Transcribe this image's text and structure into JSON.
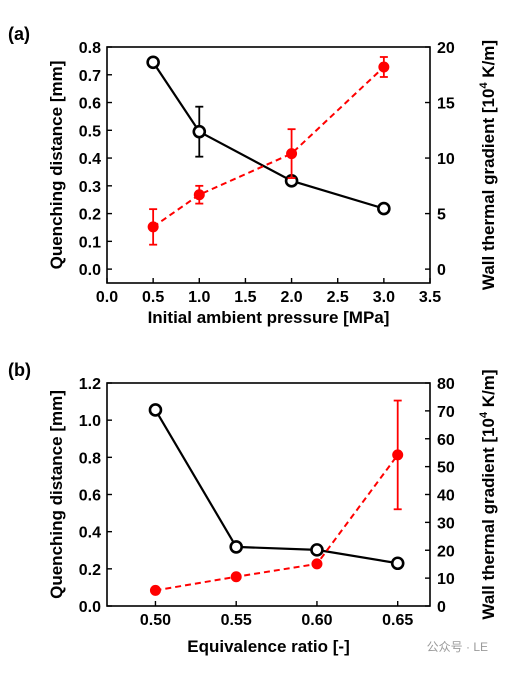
{
  "chart_data": [
    {
      "type": "line",
      "panel_label": "(a)",
      "xlabel": "Initial ambient pressure [MPa]",
      "ylabel_left": "Quenching distance [mm]",
      "ylabel_right": "Wall thermal gradient [10^4 K/m]",
      "xlim": [
        0.0,
        3.5
      ],
      "ylim_left": [
        -0.05,
        0.8
      ],
      "ylim_right": [
        -1.25,
        20
      ],
      "x_ticks": [
        0.0,
        0.5,
        1.0,
        1.5,
        2.0,
        2.5,
        3.0,
        3.5
      ],
      "x_tick_labels": [
        "0.0",
        "0.5",
        "1.0",
        "1.5",
        "2.0",
        "2.5",
        "3.0",
        "3.5"
      ],
      "y_left_ticks": [
        0.0,
        0.1,
        0.2,
        0.3,
        0.4,
        0.5,
        0.6,
        0.7,
        0.8
      ],
      "y_left_tick_labels": [
        "0.0",
        "0.1",
        "0.2",
        "0.3",
        "0.4",
        "0.5",
        "0.6",
        "0.7",
        "0.8"
      ],
      "y_right_ticks": [
        0,
        5,
        10,
        15,
        20
      ],
      "y_right_tick_labels": [
        "0",
        "5",
        "10",
        "15",
        "20"
      ],
      "series": [
        {
          "axis": "left",
          "color": "#000000",
          "style": "solid",
          "marker": "open-circle",
          "x": [
            0.5,
            1.0,
            2.0,
            3.0
          ],
          "y": [
            0.745,
            0.495,
            0.318,
            0.218
          ],
          "err": [
            0.0,
            0.09,
            0.0,
            0.012
          ]
        },
        {
          "axis": "right",
          "color": "#ff0000",
          "style": "dashed",
          "marker": "filled-circle",
          "x": [
            0.5,
            1.0,
            2.0,
            3.0
          ],
          "y": [
            3.8,
            6.7,
            10.4,
            18.2
          ],
          "err": [
            1.6,
            0.8,
            2.2,
            0.9
          ]
        }
      ]
    },
    {
      "type": "line",
      "panel_label": "(b)",
      "xlabel": "Equivalence ratio [-]",
      "ylabel_left": "Quenching distance [mm]",
      "ylabel_right": "Wall thermal gradient [10^4 K/m]",
      "xlim": [
        0.47,
        0.67
      ],
      "ylim_left": [
        0.0,
        1.2
      ],
      "ylim_right": [
        0,
        80
      ],
      "x_ticks": [
        0.5,
        0.55,
        0.6,
        0.65
      ],
      "x_tick_labels": [
        "0.50",
        "0.55",
        "0.60",
        "0.65"
      ],
      "y_left_ticks": [
        0.0,
        0.2,
        0.4,
        0.6,
        0.8,
        1.0,
        1.2
      ],
      "y_left_tick_labels": [
        "0.0",
        "0.2",
        "0.4",
        "0.6",
        "0.8",
        "1.0",
        "1.2"
      ],
      "y_right_ticks": [
        0,
        10,
        20,
        30,
        40,
        50,
        60,
        70,
        80
      ],
      "y_right_tick_labels": [
        "0",
        "10",
        "20",
        "30",
        "40",
        "50",
        "60",
        "70",
        "80"
      ],
      "series": [
        {
          "axis": "left",
          "color": "#000000",
          "style": "solid",
          "marker": "open-circle",
          "x": [
            0.5,
            0.55,
            0.6,
            0.65
          ],
          "y": [
            1.055,
            0.318,
            0.302,
            0.23
          ],
          "err": [
            0.0,
            0.0,
            0.0,
            0.0
          ]
        },
        {
          "axis": "right",
          "color": "#ff0000",
          "style": "dashed",
          "marker": "filled-circle",
          "x": [
            0.5,
            0.55,
            0.6,
            0.65
          ],
          "y": [
            5.6,
            10.5,
            15.1,
            54.2
          ],
          "err": [
            0.0,
            0.0,
            0.0,
            19.5
          ]
        }
      ]
    }
  ],
  "watermark": "公众号 · LE"
}
